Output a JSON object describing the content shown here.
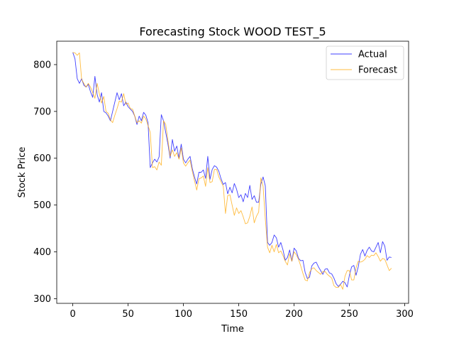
{
  "chart_data": {
    "type": "line",
    "title": "Forecasting Stock WOOD TEST_5",
    "xlabel": "Time",
    "ylabel": "Stock Price",
    "xlim": [
      -14.5,
      303.5
    ],
    "ylim": [
      290,
      850
    ],
    "xticks": [
      0,
      50,
      100,
      150,
      200,
      250,
      300
    ],
    "yticks": [
      300,
      400,
      500,
      600,
      700,
      800
    ],
    "grid": false,
    "legend_position": "top-right",
    "colors": {
      "actual": "#0000ff",
      "forecast": "#ffa500"
    },
    "series": [
      {
        "name": "Actual",
        "color": "#0000ff",
        "x": [
          0,
          2,
          4,
          6,
          8,
          10,
          12,
          14,
          16,
          18,
          20,
          22,
          24,
          26,
          28,
          30,
          32,
          34,
          36,
          38,
          40,
          42,
          44,
          46,
          48,
          50,
          52,
          54,
          56,
          58,
          60,
          62,
          64,
          66,
          68,
          70,
          72,
          74,
          76,
          78,
          80,
          82,
          84,
          86,
          88,
          90,
          92,
          94,
          96,
          98,
          100,
          102,
          104,
          106,
          108,
          110,
          112,
          114,
          116,
          118,
          120,
          122,
          124,
          126,
          128,
          130,
          132,
          134,
          136,
          138,
          140,
          142,
          144,
          146,
          148,
          150,
          152,
          154,
          156,
          158,
          160,
          162,
          164,
          166,
          168,
          170,
          172,
          174,
          176,
          178,
          180,
          182,
          184,
          186,
          188,
          190,
          192,
          194,
          196,
          198,
          200,
          202,
          204,
          206,
          208,
          210,
          212,
          214,
          216,
          218,
          220,
          222,
          224,
          226,
          228,
          230,
          232,
          234,
          236,
          238,
          240,
          242,
          244,
          246,
          248,
          250,
          252,
          254,
          256,
          258,
          260,
          262,
          264,
          266,
          268,
          270,
          272,
          274,
          276,
          278,
          280,
          282,
          284,
          286,
          288
        ],
        "values": [
          826,
          812,
          770,
          760,
          770,
          756,
          752,
          758,
          742,
          730,
          775,
          736,
          720,
          740,
          700,
          697,
          690,
          680,
          700,
          720,
          740,
          725,
          738,
          712,
          720,
          710,
          705,
          700,
          690,
          672,
          690,
          680,
          698,
          692,
          676,
          580,
          590,
          598,
          592,
          603,
          693,
          680,
          655,
          630,
          600,
          640,
          615,
          626,
          600,
          630,
          598,
          590,
          598,
          604,
          578,
          560,
          545,
          570,
          570,
          575,
          557,
          604,
          555,
          576,
          584,
          581,
          572,
          556,
          544,
          548,
          524,
          538,
          526,
          546,
          534,
          516,
          522,
          507,
          525,
          516,
          542,
          512,
          520,
          506,
          506,
          545,
          560,
          541,
          420,
          414,
          420,
          436,
          430,
          410,
          420,
          404,
          382,
          388,
          404,
          380,
          408,
          402,
          386,
          381,
          382,
          356,
          343,
          346,
          370,
          376,
          378,
          368,
          360,
          352,
          363,
          364,
          355,
          353,
          344,
          332,
          326,
          331,
          337,
          334,
          325,
          350,
          368,
          371,
          350,
          368,
          395,
          405,
          391,
          403,
          410,
          402,
          400,
          410,
          420,
          398,
          422,
          412,
          382,
          389,
          388
        ]
      },
      {
        "name": "Forecast",
        "color": "#ffa500",
        "x": [
          0,
          2,
          4,
          6,
          8,
          10,
          12,
          14,
          16,
          18,
          20,
          22,
          24,
          26,
          28,
          30,
          32,
          34,
          36,
          38,
          40,
          42,
          44,
          46,
          48,
          50,
          52,
          54,
          56,
          58,
          60,
          62,
          64,
          66,
          68,
          70,
          72,
          74,
          76,
          78,
          80,
          82,
          84,
          86,
          88,
          90,
          92,
          94,
          96,
          98,
          100,
          102,
          104,
          106,
          108,
          110,
          112,
          114,
          116,
          118,
          120,
          122,
          124,
          126,
          128,
          130,
          132,
          134,
          136,
          138,
          140,
          142,
          144,
          146,
          148,
          150,
          152,
          154,
          156,
          158,
          160,
          162,
          164,
          166,
          168,
          170,
          172,
          174,
          176,
          178,
          180,
          182,
          184,
          186,
          188,
          190,
          192,
          194,
          196,
          198,
          200,
          202,
          204,
          206,
          208,
          210,
          212,
          214,
          216,
          218,
          220,
          222,
          224,
          226,
          228,
          230,
          232,
          234,
          236,
          238,
          240,
          242,
          244,
          246,
          248,
          250,
          252,
          254,
          256,
          258,
          260,
          262,
          264,
          266,
          268,
          270,
          272,
          274,
          276,
          278,
          280,
          282,
          284,
          286,
          288
        ],
        "values": [
          826,
          825,
          820,
          825,
          768,
          760,
          752,
          760,
          752,
          740,
          728,
          760,
          738,
          718,
          732,
          700,
          696,
          682,
          676,
          692,
          706,
          722,
          720,
          738,
          715,
          718,
          706,
          705,
          690,
          676,
          680,
          675,
          690,
          684,
          670,
          655,
          580,
          582,
          575,
          592,
          585,
          680,
          672,
          638,
          604,
          618,
          604,
          612,
          598,
          622,
          590,
          583,
          590,
          596,
          572,
          552,
          532,
          556,
          558,
          562,
          540,
          580,
          548,
          550,
          576,
          576,
          560,
          550,
          540,
          482,
          520,
          522,
          500,
          478,
          494,
          482,
          488,
          475,
          460,
          462,
          476,
          496,
          462,
          476,
          485,
          558,
          540,
          470,
          410,
          398,
          414,
          400,
          416,
          398,
          402,
          392,
          380,
          372,
          396,
          380,
          400,
          394,
          384,
          370,
          354,
          340,
          338,
          356,
          364,
          366,
          360,
          356,
          352,
          358,
          358,
          352,
          348,
          344,
          328,
          324,
          324,
          330,
          320,
          348,
          360,
          360,
          340,
          340,
          366,
          380,
          378,
          380,
          384,
          392,
          388,
          393,
          392,
          398,
          390,
          380,
          386,
          384,
          372,
          360,
          365
        ]
      }
    ]
  }
}
